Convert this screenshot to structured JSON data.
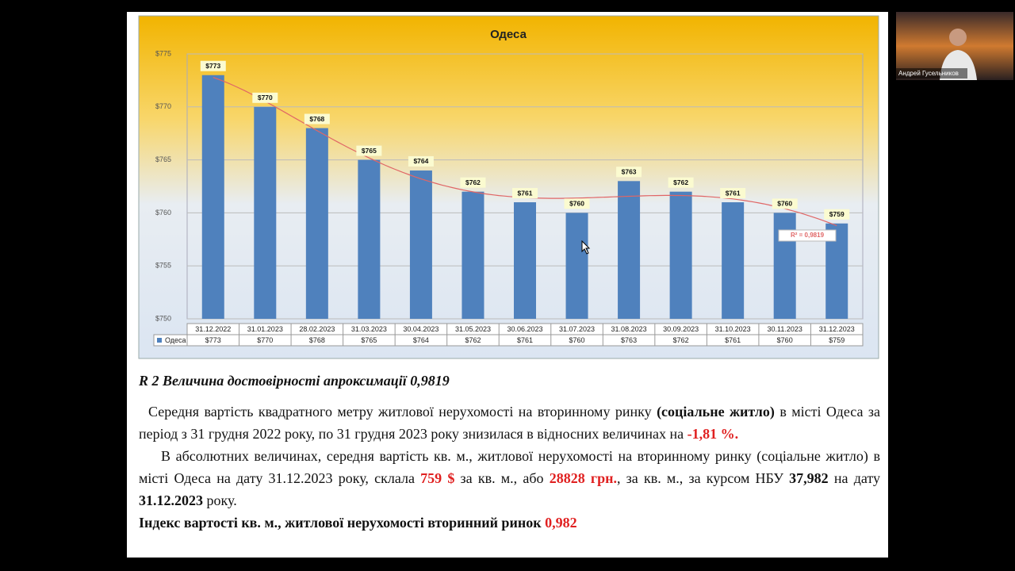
{
  "chart_data": {
    "type": "bar",
    "title": "Одеса",
    "series_name": "Одеса",
    "categories": [
      "31.12.2022",
      "31.01.2023",
      "28.02.2023",
      "31.03.2023",
      "30.04.2023",
      "31.05.2023",
      "30.06.2023",
      "31.07.2023",
      "31.08.2023",
      "30.09.2023",
      "31.10.2023",
      "30.11.2023",
      "31.12.2023"
    ],
    "values": [
      773,
      770,
      768,
      765,
      764,
      762,
      761,
      760,
      763,
      762,
      761,
      760,
      759
    ],
    "value_labels": [
      "$773",
      "$770",
      "$768",
      "$765",
      "$764",
      "$762",
      "$761",
      "$760",
      "$763",
      "$762",
      "$761",
      "$760",
      "$759"
    ],
    "color": "#4f81bd",
    "ylim": [
      750,
      775
    ],
    "yticks": [
      {
        "value": 750,
        "label": "$750"
      },
      {
        "value": 755,
        "label": "$755"
      },
      {
        "value": 760,
        "label": "$760"
      },
      {
        "value": 765,
        "label": "$765"
      },
      {
        "value": 770,
        "label": "$770"
      },
      {
        "value": 775,
        "label": "$775"
      }
    ],
    "grid": true,
    "data_table": true,
    "trendline": {
      "type": "polynomial",
      "order": 5,
      "color": "#e06666",
      "label": "R² = 0,9819"
    }
  },
  "document": {
    "paragraphs": [
      [
        {
          "text": "R 2 Величина достовірності апроксимації 0,9819",
          "bold": true,
          "italic": true
        }
      ],
      [
        {
          "text": "Середня вартість квадратного метру житлової нерухомості на вторинному ринку "
        },
        {
          "text": "(соціальне житло)",
          "bold": true
        },
        {
          "text": " в місті Одеса за період з 31 грудня 2022 року, по 31 грудня 2023 року знизилася в відносних величинах на "
        },
        {
          "text": "-1,81 %.",
          "bold": true,
          "color": "#e02020"
        }
      ],
      [
        {
          "text": "В абсолютних величинах, середня вартість кв. м., житлової нерухомості на вторинному ринку (соціальне житло) в місті Одеса на дату 31.12.2023 року, склала "
        },
        {
          "text": "759 $",
          "bold": true,
          "color": "#e02020"
        },
        {
          "text": " за кв. м., або "
        },
        {
          "text": "28828 грн.",
          "bold": true,
          "color": "#e02020"
        },
        {
          "text": ", за кв. м., за курсом НБУ "
        },
        {
          "text": "37,982",
          "bold": true
        },
        {
          "text": " на дату "
        },
        {
          "text": "31.12.2023",
          "bold": true
        },
        {
          "text": " року."
        }
      ],
      [
        {
          "text": "Індекс вартості кв. м., житлової нерухомості вторинний ринок ",
          "bold": true
        },
        {
          "text": "0,982",
          "bold": true,
          "color": "#e02020"
        }
      ]
    ]
  },
  "participant": {
    "name": "Андрей Гусельников"
  }
}
